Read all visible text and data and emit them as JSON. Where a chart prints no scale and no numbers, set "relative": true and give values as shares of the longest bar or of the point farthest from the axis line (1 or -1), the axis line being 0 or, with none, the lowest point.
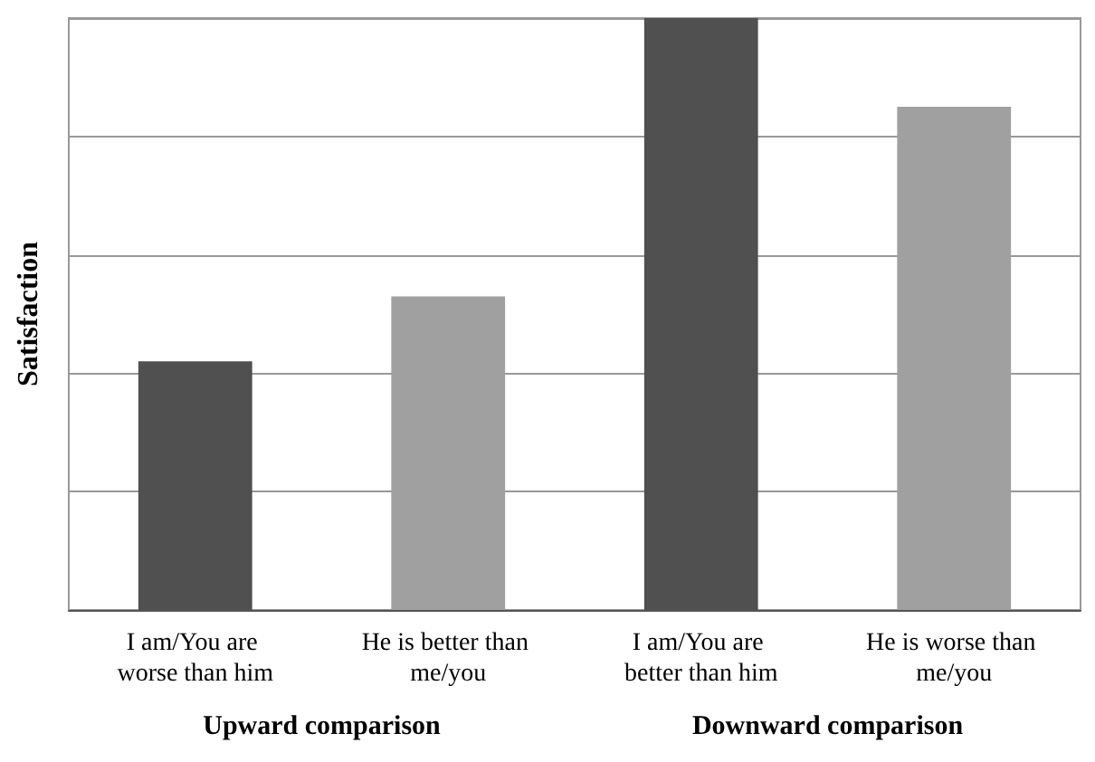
{
  "chart_data": {
    "type": "bar",
    "ylabel": "Satisfaction",
    "categories": [
      "I am/You are worse than him",
      "He is better than me/you",
      "I am/You are better than him",
      "He is worse than me/you"
    ],
    "values": [
      0.42,
      0.53,
      1,
      0.85
    ],
    "colors": [
      "#505050",
      "#a0a0a0",
      "#505050",
      "#a0a0a0"
    ],
    "relative": true,
    "grid": "y",
    "annotations": [
      "Upward comparison",
      "Downward comparison"
    ]
  }
}
